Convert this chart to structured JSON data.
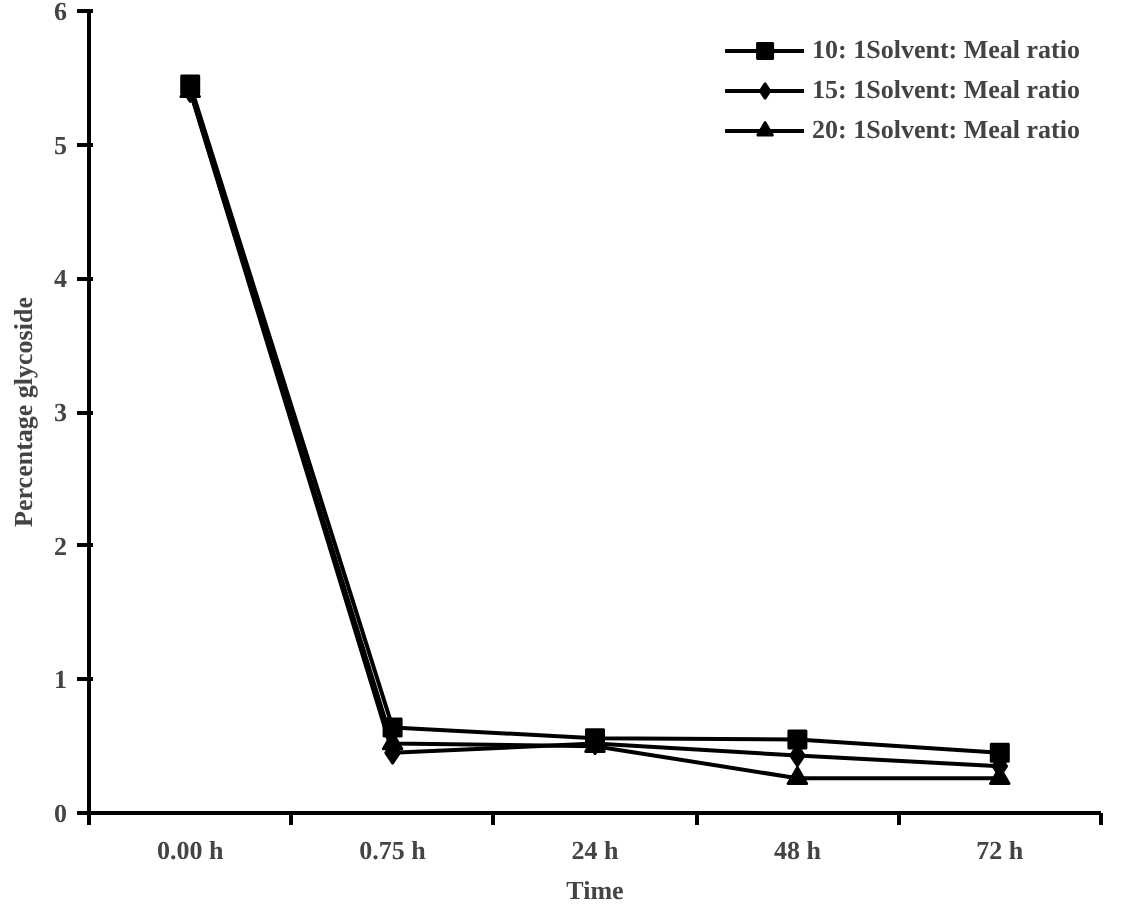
{
  "chart_data": {
    "type": "line",
    "xlabel": "Time",
    "ylabel": "Percentage glycoside",
    "categories": [
      "0.00 h",
      "0.75 h",
      "24 h",
      "48 h",
      "72 h"
    ],
    "ylim": [
      0,
      6
    ],
    "yticks": [
      0,
      1,
      2,
      3,
      4,
      5,
      6
    ],
    "grid": false,
    "legend": "top right",
    "line_style": "solid",
    "series": [
      {
        "name": "10: 1Solvent: Meal ratio",
        "color": "#000000",
        "marker": "square",
        "values": [
          5.45,
          0.64,
          0.56,
          0.55,
          0.45
        ]
      },
      {
        "name": "15: 1Solvent: Meal ratio",
        "color": "#000000",
        "marker": "diamond",
        "values": [
          5.4,
          0.45,
          0.52,
          0.43,
          0.35
        ]
      },
      {
        "name": "20: 1Solvent: Meal ratio",
        "color": "#000000",
        "marker": "triangle",
        "values": [
          5.4,
          0.52,
          0.5,
          0.26,
          0.26
        ]
      }
    ]
  }
}
